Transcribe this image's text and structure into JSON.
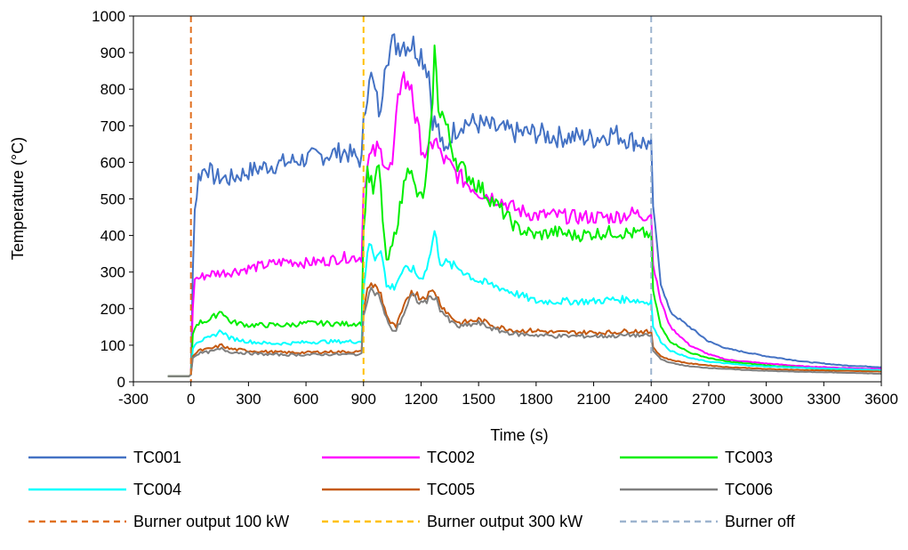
{
  "chart_data": {
    "type": "line",
    "title": "",
    "xlabel": "Time (s)",
    "ylabel": "Temperature (°C)",
    "xlim": [
      -300,
      3600
    ],
    "ylim": [
      0,
      1000
    ],
    "x_ticks": [
      "-300",
      "0",
      "300",
      "600",
      "900",
      "1200",
      "1500",
      "1800",
      "2100",
      "2400",
      "2700",
      "3000",
      "3300",
      "3600"
    ],
    "y_ticks": [
      "0",
      "100",
      "200",
      "300",
      "400",
      "500",
      "600",
      "700",
      "800",
      "900",
      "1000"
    ],
    "grid": false,
    "legend_position": "bottom",
    "series": [
      {
        "name": "TC001",
        "color": "#4472C4",
        "points": [
          [
            -120,
            15
          ],
          [
            -10,
            15
          ],
          [
            0,
            20
          ],
          [
            10,
            300
          ],
          [
            20,
            470
          ],
          [
            40,
            560
          ],
          [
            80,
            590
          ],
          [
            120,
            560
          ],
          [
            200,
            555
          ],
          [
            300,
            575
          ],
          [
            400,
            590
          ],
          [
            500,
            600
          ],
          [
            600,
            610
          ],
          [
            700,
            620
          ],
          [
            800,
            630
          ],
          [
            890,
            605
          ],
          [
            900,
            700
          ],
          [
            930,
            850
          ],
          [
            960,
            790
          ],
          [
            990,
            720
          ],
          [
            1010,
            890
          ],
          [
            1050,
            920
          ],
          [
            1100,
            930
          ],
          [
            1150,
            925
          ],
          [
            1200,
            900
          ],
          [
            1240,
            850
          ],
          [
            1260,
            720
          ],
          [
            1290,
            690
          ],
          [
            1320,
            620
          ],
          [
            1360,
            680
          ],
          [
            1420,
            710
          ],
          [
            1500,
            705
          ],
          [
            1600,
            690
          ],
          [
            1700,
            680
          ],
          [
            1800,
            680
          ],
          [
            1900,
            670
          ],
          [
            2000,
            670
          ],
          [
            2100,
            665
          ],
          [
            2200,
            680
          ],
          [
            2300,
            660
          ],
          [
            2395,
            650
          ],
          [
            2400,
            665
          ],
          [
            2410,
            480
          ],
          [
            2450,
            270
          ],
          [
            2500,
            190
          ],
          [
            2600,
            150
          ],
          [
            2700,
            110
          ],
          [
            2800,
            90
          ],
          [
            2900,
            80
          ],
          [
            3000,
            70
          ],
          [
            3200,
            55
          ],
          [
            3400,
            45
          ],
          [
            3600,
            40
          ]
        ]
      },
      {
        "name": "TC002",
        "color": "#FF00FF",
        "points": [
          [
            -120,
            15
          ],
          [
            -10,
            15
          ],
          [
            0,
            20
          ],
          [
            10,
            200
          ],
          [
            20,
            280
          ],
          [
            100,
            295
          ],
          [
            200,
            300
          ],
          [
            300,
            310
          ],
          [
            400,
            320
          ],
          [
            500,
            330
          ],
          [
            600,
            325
          ],
          [
            700,
            330
          ],
          [
            800,
            340
          ],
          [
            890,
            340
          ],
          [
            900,
            530
          ],
          [
            930,
            610
          ],
          [
            970,
            635
          ],
          [
            1000,
            620
          ],
          [
            1030,
            580
          ],
          [
            1050,
            590
          ],
          [
            1080,
            760
          ],
          [
            1100,
            850
          ],
          [
            1130,
            800
          ],
          [
            1150,
            820
          ],
          [
            1170,
            720
          ],
          [
            1200,
            650
          ],
          [
            1230,
            610
          ],
          [
            1270,
            670
          ],
          [
            1300,
            620
          ],
          [
            1350,
            590
          ],
          [
            1400,
            560
          ],
          [
            1500,
            520
          ],
          [
            1600,
            500
          ],
          [
            1700,
            470
          ],
          [
            1800,
            455
          ],
          [
            1900,
            455
          ],
          [
            2000,
            450
          ],
          [
            2100,
            450
          ],
          [
            2200,
            450
          ],
          [
            2300,
            460
          ],
          [
            2395,
            455
          ],
          [
            2400,
            460
          ],
          [
            2410,
            320
          ],
          [
            2450,
            220
          ],
          [
            2500,
            150
          ],
          [
            2600,
            100
          ],
          [
            2700,
            75
          ],
          [
            2800,
            60
          ],
          [
            2900,
            55
          ],
          [
            3000,
            50
          ],
          [
            3200,
            42
          ],
          [
            3400,
            38
          ],
          [
            3600,
            35
          ]
        ]
      },
      {
        "name": "TC003",
        "color": "#00EE00",
        "points": [
          [
            -120,
            15
          ],
          [
            -10,
            15
          ],
          [
            0,
            20
          ],
          [
            10,
            130
          ],
          [
            30,
            160
          ],
          [
            100,
            170
          ],
          [
            160,
            195
          ],
          [
            200,
            165
          ],
          [
            300,
            155
          ],
          [
            400,
            155
          ],
          [
            500,
            155
          ],
          [
            600,
            160
          ],
          [
            700,
            160
          ],
          [
            800,
            158
          ],
          [
            890,
            160
          ],
          [
            900,
            400
          ],
          [
            920,
            580
          ],
          [
            950,
            520
          ],
          [
            980,
            590
          ],
          [
            1000,
            450
          ],
          [
            1020,
            320
          ],
          [
            1050,
            370
          ],
          [
            1100,
            500
          ],
          [
            1130,
            610
          ],
          [
            1160,
            540
          ],
          [
            1190,
            500
          ],
          [
            1220,
            520
          ],
          [
            1250,
            680
          ],
          [
            1270,
            900
          ],
          [
            1290,
            760
          ],
          [
            1320,
            720
          ],
          [
            1360,
            640
          ],
          [
            1400,
            590
          ],
          [
            1500,
            535
          ],
          [
            1600,
            480
          ],
          [
            1700,
            420
          ],
          [
            1800,
            400
          ],
          [
            1900,
            410
          ],
          [
            2000,
            400
          ],
          [
            2100,
            405
          ],
          [
            2200,
            410
          ],
          [
            2300,
            405
          ],
          [
            2395,
            405
          ],
          [
            2400,
            410
          ],
          [
            2410,
            250
          ],
          [
            2450,
            150
          ],
          [
            2500,
            110
          ],
          [
            2600,
            80
          ],
          [
            2700,
            65
          ],
          [
            2800,
            55
          ],
          [
            2900,
            50
          ],
          [
            3000,
            45
          ],
          [
            3200,
            38
          ],
          [
            3400,
            33
          ],
          [
            3600,
            30
          ]
        ]
      },
      {
        "name": "TC004",
        "color": "#00FFFF",
        "points": [
          [
            -120,
            15
          ],
          [
            -10,
            15
          ],
          [
            0,
            20
          ],
          [
            10,
            90
          ],
          [
            30,
            110
          ],
          [
            100,
            120
          ],
          [
            160,
            140
          ],
          [
            200,
            120
          ],
          [
            300,
            110
          ],
          [
            400,
            105
          ],
          [
            500,
            105
          ],
          [
            600,
            108
          ],
          [
            700,
            110
          ],
          [
            800,
            110
          ],
          [
            890,
            110
          ],
          [
            900,
            260
          ],
          [
            930,
            380
          ],
          [
            960,
            340
          ],
          [
            990,
            370
          ],
          [
            1020,
            260
          ],
          [
            1060,
            260
          ],
          [
            1100,
            300
          ],
          [
            1150,
            310
          ],
          [
            1200,
            280
          ],
          [
            1240,
            330
          ],
          [
            1270,
            410
          ],
          [
            1300,
            330
          ],
          [
            1350,
            320
          ],
          [
            1400,
            310
          ],
          [
            1500,
            275
          ],
          [
            1600,
            260
          ],
          [
            1700,
            240
          ],
          [
            1800,
            220
          ],
          [
            1900,
            220
          ],
          [
            2000,
            220
          ],
          [
            2100,
            220
          ],
          [
            2200,
            225
          ],
          [
            2300,
            225
          ],
          [
            2395,
            215
          ],
          [
            2400,
            225
          ],
          [
            2410,
            150
          ],
          [
            2450,
            110
          ],
          [
            2500,
            85
          ],
          [
            2600,
            65
          ],
          [
            2700,
            55
          ],
          [
            2800,
            50
          ],
          [
            2900,
            45
          ],
          [
            3000,
            42
          ],
          [
            3200,
            38
          ],
          [
            3400,
            35
          ],
          [
            3600,
            32
          ]
        ]
      },
      {
        "name": "TC005",
        "color": "#C55A11",
        "points": [
          [
            -120,
            15
          ],
          [
            -10,
            15
          ],
          [
            0,
            20
          ],
          [
            10,
            70
          ],
          [
            40,
            85
          ],
          [
            100,
            90
          ],
          [
            160,
            100
          ],
          [
            200,
            90
          ],
          [
            300,
            85
          ],
          [
            400,
            82
          ],
          [
            500,
            80
          ],
          [
            600,
            80
          ],
          [
            700,
            82
          ],
          [
            800,
            82
          ],
          [
            890,
            82
          ],
          [
            900,
            200
          ],
          [
            930,
            270
          ],
          [
            960,
            260
          ],
          [
            990,
            240
          ],
          [
            1010,
            200
          ],
          [
            1040,
            160
          ],
          [
            1070,
            150
          ],
          [
            1100,
            190
          ],
          [
            1150,
            250
          ],
          [
            1200,
            230
          ],
          [
            1240,
            240
          ],
          [
            1270,
            250
          ],
          [
            1300,
            215
          ],
          [
            1350,
            180
          ],
          [
            1400,
            160
          ],
          [
            1500,
            170
          ],
          [
            1600,
            150
          ],
          [
            1700,
            140
          ],
          [
            1800,
            140
          ],
          [
            1900,
            135
          ],
          [
            2000,
            135
          ],
          [
            2100,
            135
          ],
          [
            2200,
            135
          ],
          [
            2300,
            140
          ],
          [
            2395,
            135
          ],
          [
            2400,
            140
          ],
          [
            2410,
            95
          ],
          [
            2450,
            70
          ],
          [
            2500,
            60
          ],
          [
            2600,
            50
          ],
          [
            2700,
            45
          ],
          [
            2800,
            40
          ],
          [
            2900,
            38
          ],
          [
            3000,
            35
          ],
          [
            3200,
            32
          ],
          [
            3400,
            30
          ],
          [
            3600,
            28
          ]
        ]
      },
      {
        "name": "TC006",
        "color": "#7F7F7F",
        "points": [
          [
            -120,
            15
          ],
          [
            -10,
            15
          ],
          [
            0,
            20
          ],
          [
            10,
            65
          ],
          [
            40,
            78
          ],
          [
            100,
            82
          ],
          [
            160,
            90
          ],
          [
            200,
            82
          ],
          [
            300,
            78
          ],
          [
            400,
            75
          ],
          [
            500,
            74
          ],
          [
            600,
            74
          ],
          [
            700,
            75
          ],
          [
            800,
            75
          ],
          [
            890,
            75
          ],
          [
            900,
            180
          ],
          [
            930,
            255
          ],
          [
            960,
            245
          ],
          [
            990,
            225
          ],
          [
            1010,
            185
          ],
          [
            1040,
            145
          ],
          [
            1070,
            140
          ],
          [
            1100,
            175
          ],
          [
            1150,
            235
          ],
          [
            1200,
            215
          ],
          [
            1240,
            225
          ],
          [
            1270,
            235
          ],
          [
            1300,
            200
          ],
          [
            1350,
            165
          ],
          [
            1400,
            150
          ],
          [
            1500,
            160
          ],
          [
            1600,
            140
          ],
          [
            1700,
            130
          ],
          [
            1800,
            128
          ],
          [
            1900,
            125
          ],
          [
            2000,
            125
          ],
          [
            2100,
            125
          ],
          [
            2200,
            125
          ],
          [
            2300,
            128
          ],
          [
            2395,
            125
          ],
          [
            2400,
            128
          ],
          [
            2410,
            85
          ],
          [
            2450,
            62
          ],
          [
            2500,
            52
          ],
          [
            2600,
            42
          ],
          [
            2700,
            38
          ],
          [
            2800,
            35
          ],
          [
            2900,
            32
          ],
          [
            3000,
            30
          ],
          [
            3200,
            27
          ],
          [
            3400,
            25
          ],
          [
            3600,
            22
          ]
        ]
      }
    ],
    "markers": [
      {
        "name": "Burner output 100 kW",
        "x": 0,
        "color": "#E07020"
      },
      {
        "name": "Burner output 300 kW",
        "x": 900,
        "color": "#FFC000"
      },
      {
        "name": "Burner off",
        "x": 2400,
        "color": "#9DB4CF"
      }
    ]
  }
}
